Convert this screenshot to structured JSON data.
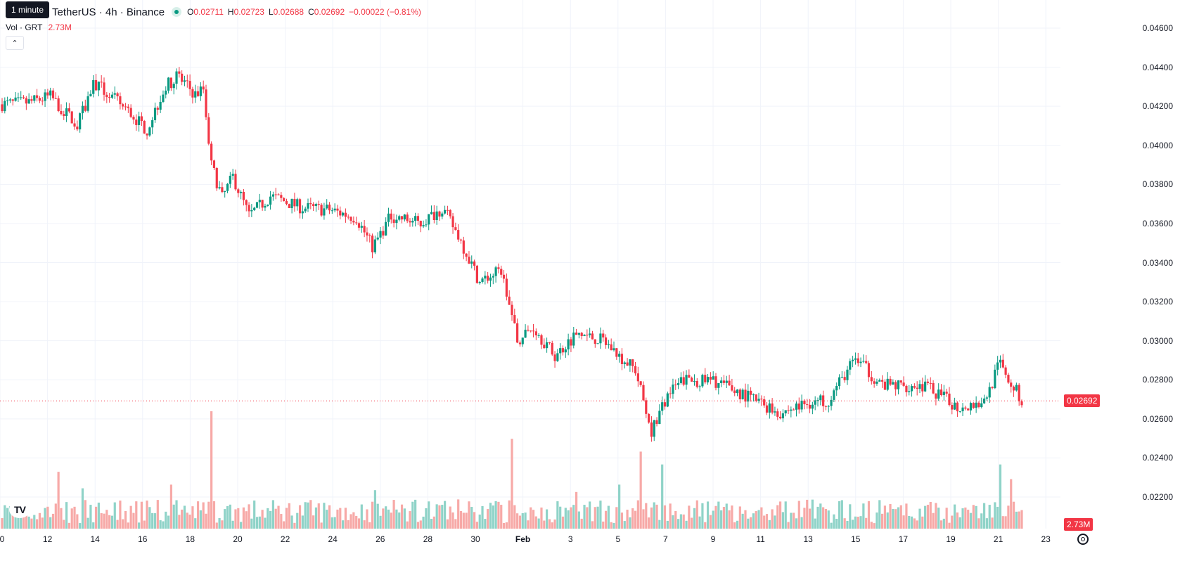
{
  "header": {
    "tooltip": "1 minute",
    "symbol": "TetherUS · 4h · Binance",
    "ohlc": {
      "o_label": "O",
      "o": "0.02711",
      "h_label": "H",
      "h": "0.02723",
      "l_label": "L",
      "l": "0.02688",
      "c_label": "C",
      "c": "0.02692",
      "change": "−0.00022 (−0.81%)"
    }
  },
  "volume": {
    "label": "Vol · GRT",
    "value": "2.73M"
  },
  "colors": {
    "up": "#089981",
    "down": "#f23645",
    "up_vol": "#8fd3c8",
    "down_vol": "#f7a9a7",
    "grid": "#f0f3fa"
  },
  "icons": {
    "collapse": "chevron-up-icon",
    "logo": "tradingview-logo-icon",
    "settings": "gear-icon"
  },
  "chart_data": {
    "type": "candlestick",
    "ylim": [
      0.0215,
      0.0466
    ],
    "y_ticks": [
      "0.04600",
      "0.04400",
      "0.04200",
      "0.04000",
      "0.03800",
      "0.03600",
      "0.03400",
      "0.03200",
      "0.03000",
      "0.02800",
      "0.02600",
      "0.02400",
      "0.02200"
    ],
    "x_ticks": [
      "0",
      "12",
      "14",
      "16",
      "18",
      "20",
      "22",
      "24",
      "26",
      "28",
      "30",
      "Feb",
      "3",
      "5",
      "7",
      "9",
      "11",
      "13",
      "15",
      "17",
      "19",
      "21",
      "23"
    ],
    "last_price": "0.02692",
    "last_volume": "2.73M",
    "trend_anchors": [
      [
        0,
        0.0421
      ],
      [
        10,
        0.0422
      ],
      [
        18,
        0.0425
      ],
      [
        28,
        0.041
      ],
      [
        34,
        0.0432
      ],
      [
        45,
        0.042
      ],
      [
        54,
        0.0408
      ],
      [
        60,
        0.0428
      ],
      [
        65,
        0.0436
      ],
      [
        72,
        0.0426
      ],
      [
        75,
        0.0429
      ],
      [
        78,
        0.039
      ],
      [
        82,
        0.0373
      ],
      [
        86,
        0.0384
      ],
      [
        92,
        0.0364
      ],
      [
        100,
        0.0374
      ],
      [
        112,
        0.0368
      ],
      [
        122,
        0.0367
      ],
      [
        132,
        0.0363
      ],
      [
        138,
        0.0348
      ],
      [
        145,
        0.0364
      ],
      [
        156,
        0.036
      ],
      [
        164,
        0.0368
      ],
      [
        170,
        0.0354
      ],
      [
        178,
        0.033
      ],
      [
        186,
        0.0336
      ],
      [
        192,
        0.03
      ],
      [
        198,
        0.0307
      ],
      [
        206,
        0.0292
      ],
      [
        214,
        0.0304
      ],
      [
        224,
        0.03
      ],
      [
        236,
        0.0285
      ],
      [
        242,
        0.0254
      ],
      [
        248,
        0.0272
      ],
      [
        254,
        0.028
      ],
      [
        266,
        0.0279
      ],
      [
        280,
        0.027
      ],
      [
        290,
        0.0263
      ],
      [
        300,
        0.0268
      ],
      [
        308,
        0.027
      ],
      [
        318,
        0.0291
      ],
      [
        328,
        0.0277
      ],
      [
        344,
        0.0277
      ],
      [
        356,
        0.0266
      ],
      [
        366,
        0.0269
      ],
      [
        372,
        0.0289
      ],
      [
        380,
        0.0269
      ]
    ],
    "volume_max": 6.4,
    "volume_spikes": [
      [
        21,
        3.1
      ],
      [
        30,
        2.2
      ],
      [
        63,
        2.4
      ],
      [
        78,
        6.4
      ],
      [
        139,
        2.1
      ],
      [
        190,
        4.9
      ],
      [
        214,
        2.0
      ],
      [
        230,
        2.4
      ],
      [
        238,
        4.2
      ],
      [
        246,
        3.5
      ],
      [
        372,
        3.5
      ],
      [
        376,
        2.7
      ]
    ]
  }
}
